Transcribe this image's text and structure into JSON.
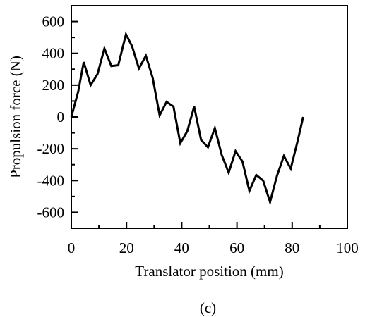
{
  "chart_data": {
    "type": "line",
    "xlabel": "Translator position (mm)",
    "ylabel": "Propulsion force (N)",
    "caption": "(c)",
    "xlim": [
      0,
      100
    ],
    "ylim": [
      -700,
      700
    ],
    "x_ticks": [
      0,
      20,
      40,
      60,
      80,
      100
    ],
    "y_ticks": [
      -600,
      -400,
      -200,
      0,
      200,
      400,
      600
    ],
    "grid": false,
    "series": [
      {
        "color": "#000000",
        "x": [
          0,
          2.5,
          4.5,
          7,
          9.5,
          12,
          14.5,
          17,
          19.8,
          22,
          24.5,
          27,
          29.5,
          32,
          34.5,
          37,
          39.5,
          42,
          44.5,
          47,
          49.5,
          52,
          54.5,
          57,
          59.5,
          62,
          64.5,
          67,
          69.5,
          72,
          74.5,
          77,
          79.5,
          82,
          84
        ],
        "values": [
          0,
          160,
          345,
          200,
          270,
          430,
          320,
          325,
          520,
          445,
          305,
          385,
          245,
          10,
          95,
          65,
          -165,
          -90,
          65,
          -145,
          -190,
          -70,
          -240,
          -350,
          -215,
          -280,
          -465,
          -365,
          -400,
          -535,
          -370,
          -245,
          -325,
          -150,
          0
        ]
      }
    ]
  }
}
